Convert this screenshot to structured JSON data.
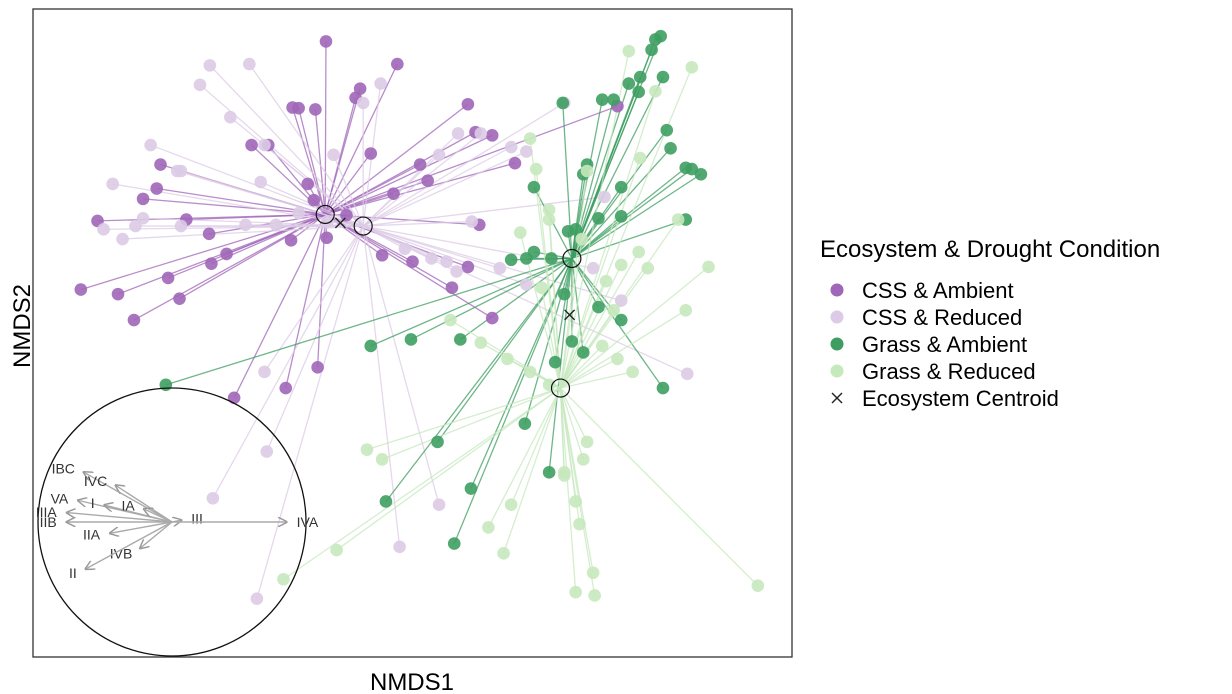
{
  "chart_data": {
    "type": "scatter",
    "xlabel": "NMDS1",
    "ylabel": "NMDS2",
    "xlim": [
      0,
      100
    ],
    "ylim": [
      0,
      100
    ],
    "legend": {
      "title": "Ecosystem & Drought Condition",
      "placement": "right",
      "entries": [
        "CSS & Ambient",
        "CSS & Reduced",
        "Grass & Ambient",
        "Grass & Reduced",
        "Ecosystem Centroid"
      ]
    },
    "colors": {
      "css_ambient": "#a066b8",
      "css_reduced": "#dccbe6",
      "grass_ambient": "#3e9e62",
      "grass_reduced": "#c6e8bd",
      "centroid": "#222222"
    },
    "series": [
      {
        "name": "CSS & Ambient",
        "spider_center": [
          38.5,
          68.3
        ],
        "x": [
          38.6,
          48.0,
          43.1,
          42.5,
          37.2,
          35.0,
          34.2,
          57.3,
          60.5,
          77.0,
          58.3,
          31.0,
          16.8,
          28.8,
          47.5,
          44.5,
          52.0,
          36.2,
          16.3,
          14.5,
          8.5,
          20.2,
          23.2,
          25.5,
          41.3,
          46.0,
          50.0,
          55.2,
          37.0,
          34.0,
          58.8,
          63.5,
          51.0,
          38.7,
          57.3,
          23.5,
          17.8,
          19.3,
          11.2,
          6.3,
          13.3,
          37.5,
          33.3,
          26.5,
          60.5
        ],
        "y": [
          95.0,
          91.5,
          87.7,
          86.3,
          84.5,
          84.7,
          84.8,
          85.3,
          80.5,
          85.0,
          81.0,
          79.0,
          76.0,
          79.0,
          71.5,
          77.7,
          73.5,
          73.0,
          72.3,
          70.7,
          67.3,
          67.5,
          65.3,
          62.2,
          68.2,
          62.0,
          61.0,
          57.0,
          70.5,
          64.3,
          66.7,
          76.2,
          76.0,
          64.7,
          60.2,
          60.7,
          58.5,
          55.3,
          56.0,
          56.7,
          52.0,
          44.7,
          41.5,
          40.0,
          52.3
        ]
      },
      {
        "name": "CSS & Reduced",
        "spider_center": [
          43.5,
          66.5
        ],
        "x": [
          23.3,
          28.5,
          22.0,
          39.6,
          59.0,
          56.0,
          53.5,
          65.0,
          45.8,
          70.0,
          43.5,
          26.0,
          30.5,
          30.0,
          19.5,
          15.5,
          19.0,
          10.5,
          9.3,
          11.8,
          13.5,
          19.5,
          14.5,
          32.0,
          28.0,
          35.0,
          38.8,
          49.0,
          52.5,
          54.5,
          55.8,
          57.8,
          73.8,
          75.3,
          61.5,
          65.0,
          77.5,
          30.5,
          30.8,
          23.7,
          86.2,
          63.0,
          53.5,
          48.3,
          29.5
        ],
        "y": [
          91.3,
          91.5,
          88.3,
          77.5,
          80.8,
          80.8,
          77.5,
          78.0,
          88.5,
          85.5,
          85.5,
          83.3,
          79.0,
          73.3,
          75.0,
          79.0,
          75.0,
          73.0,
          66.0,
          64.5,
          66.5,
          66.5,
          67.7,
          66.7,
          66.7,
          68.5,
          67.2,
          63.0,
          61.5,
          61.0,
          59.5,
          67.2,
          60.0,
          71.0,
          60.0,
          57.5,
          55.0,
          44.0,
          31.7,
          24.5,
          43.7,
          78.7,
          23.5,
          17.0,
          9.0
        ]
      },
      {
        "name": "Grass & Ambient",
        "spider_center": [
          71.0,
          61.5
        ],
        "x": [
          82.7,
          82.0,
          81.5,
          80.0,
          83.0,
          79.8,
          78.5,
          83.5,
          86.0,
          86.8,
          84.0,
          88.0,
          76.5,
          75.0,
          69.8,
          72.5,
          73.0,
          77.5,
          74.5,
          77.5,
          65.0,
          68.3,
          66.0,
          63.0,
          70.5,
          71.5,
          70.0,
          74.5,
          77.5,
          72.5,
          71.0,
          68.8,
          56.3,
          49.8,
          44.5,
          53.3,
          64.8,
          57.7,
          46.5,
          55.5,
          68.0,
          83.0,
          17.5,
          86.0,
          66.0
        ],
        "y": [
          95.8,
          95.3,
          93.7,
          89.5,
          89.5,
          87.2,
          88.5,
          81.3,
          75.5,
          75.3,
          78.5,
          74.5,
          86.0,
          86.0,
          85.5,
          74.5,
          76.0,
          72.5,
          67.7,
          68.0,
          61.5,
          61.5,
          62.5,
          61.3,
          65.7,
          66.0,
          56.0,
          54.0,
          52.0,
          47.0,
          48.7,
          45.5,
          49.0,
          49.0,
          48.0,
          33.2,
          36.0,
          26.0,
          24.0,
          17.5,
          28.5,
          41.5,
          42.0,
          67.5,
          72.5
        ]
      },
      {
        "name": "Grass & Reduced",
        "spider_center": [
          69.5,
          41.5
        ],
        "x": [
          78.5,
          86.8,
          82.0,
          80.0,
          85.0,
          89.0,
          81.0,
          66.3,
          68.0,
          73.0,
          72.3,
          75.5,
          77.5,
          76.5,
          75.0,
          77.0,
          73.0,
          72.5,
          70.0,
          63.0,
          60.0,
          62.0,
          71.5,
          74.0,
          73.8,
          72.0,
          71.5,
          70.0,
          68.0,
          65.5,
          62.5,
          59.0,
          46.0,
          44.0,
          86.0,
          79.0,
          95.5,
          33.0,
          40.0,
          79.8,
          67.0,
          68.0,
          64.2,
          55.0,
          65.5
        ],
        "y": [
          93.5,
          91.0,
          87.3,
          77.0,
          67.5,
          60.2,
          60.0,
          75.3,
          67.5,
          75.0,
          64.5,
          58.0,
          60.5,
          53.5,
          48.0,
          46.0,
          33.2,
          30.5,
          28.0,
          23.5,
          20.0,
          16.0,
          10.0,
          9.5,
          13.0,
          20.5,
          24.0,
          28.5,
          42.0,
          44.0,
          46.0,
          48.5,
          30.5,
          32.0,
          53.5,
          44.0,
          11.0,
          12.0,
          16.5,
          62.5,
          57.0,
          69.0,
          65.5,
          52.0,
          80.0
        ]
      }
    ],
    "centroids": [
      {
        "x": 40.5,
        "y": 67.0
      },
      {
        "x": 70.7,
        "y": 52.8
      }
    ],
    "inset": {
      "shape": "circle",
      "vectors": [
        {
          "label": "IBC",
          "dx": -47,
          "dy": 26.5
        },
        {
          "label": "IVC",
          "dx": -30,
          "dy": 19.5
        },
        {
          "label": "VA",
          "dx": -50,
          "dy": 11.5
        },
        {
          "label": "I",
          "dx": -36,
          "dy": 9
        },
        {
          "label": "IA",
          "dx": -15,
          "dy": 7
        },
        {
          "label": "IIIA",
          "dx": -56,
          "dy": 5
        },
        {
          "label": "IIB",
          "dx": -56,
          "dy": 0
        },
        {
          "label": "III",
          "dx": 5,
          "dy": 1
        },
        {
          "label": "IVA",
          "dx": 61,
          "dy": 0
        },
        {
          "label": "IIA",
          "dx": -33,
          "dy": -6
        },
        {
          "label": "IVB",
          "dx": -17,
          "dy": -14
        },
        {
          "label": "II",
          "dx": -46,
          "dy": -25
        }
      ]
    }
  }
}
